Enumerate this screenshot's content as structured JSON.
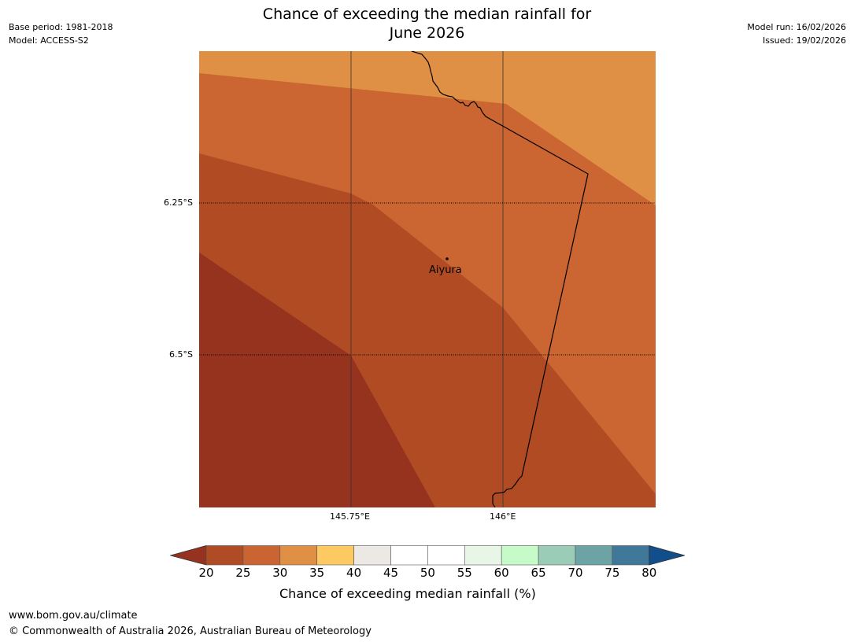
{
  "title_line1": "Chance of exceeding the median rainfall for",
  "title_line2": "June 2026",
  "meta_left": {
    "base_period": "Base period: 1981-2018",
    "model": "Model: ACCESS-S2"
  },
  "meta_right": {
    "model_run": "Model run: 16/02/2026",
    "issued": "Issued: 19/02/2026"
  },
  "map": {
    "place": {
      "name": "Aiyura"
    },
    "lat_labels": [
      "6.25°S",
      "6.5°S"
    ],
    "lon_labels": [
      "145.75°E",
      "146°E"
    ]
  },
  "colorbar": {
    "ticks": [
      "20",
      "25",
      "30",
      "35",
      "40",
      "45",
      "50",
      "55",
      "60",
      "65",
      "70",
      "75",
      "80"
    ],
    "colors": [
      "#af4b25",
      "#ca6432",
      "#df9045",
      "#fdc963",
      "#ece9e5",
      "#ffffff",
      "#ffffff",
      "#e8f6e8",
      "#c6fbc9",
      "#9bccb8",
      "#6ca3a5",
      "#3f7899"
    ],
    "under_color": "#963320",
    "over_color": "#124e8b",
    "label": "Chance of exceeding median rainfall (%)"
  },
  "footer": {
    "url": "www.bom.gov.au/climate",
    "copyright": "© Commonwealth of Australia 2026, Australian Bureau of Meteorology"
  }
}
